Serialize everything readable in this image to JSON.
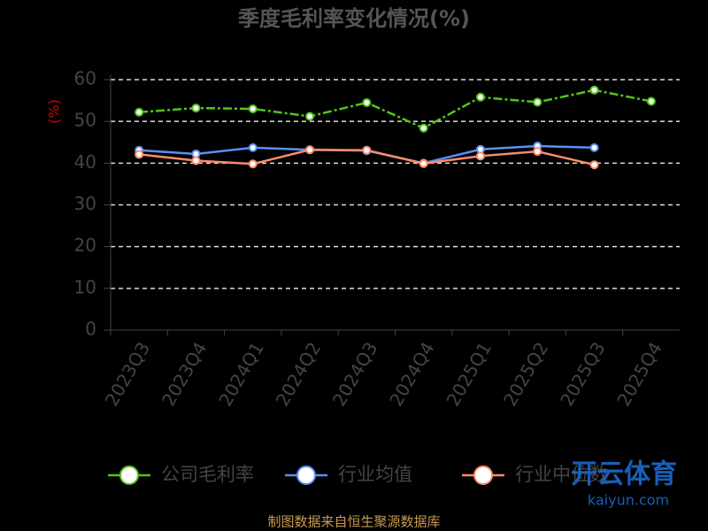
{
  "chart_data": {
    "type": "line",
    "title": "季度毛利率变化情况(%)",
    "y_label": "(%)",
    "categories": [
      "2023Q3",
      "2023Q4",
      "2024Q1",
      "2024Q2",
      "2024Q3",
      "2024Q4",
      "2025Q1",
      "2025Q2",
      "2025Q3",
      "2025Q4"
    ],
    "series": [
      {
        "name": "公司毛利率",
        "color": "#52c41a",
        "values": [
          52.2,
          53.2,
          53.0,
          51.2,
          54.5,
          48.4,
          55.8,
          54.6,
          57.5,
          54.8
        ]
      },
      {
        "name": "行业均值",
        "color": "#5b8ff9",
        "values": [
          43.1,
          42.2,
          43.7,
          43.2,
          43.0,
          40.0,
          43.3,
          44.1,
          43.7,
          null
        ]
      },
      {
        "name": "行业中位数",
        "color": "#ff8c69",
        "values": [
          42.1,
          40.6,
          39.8,
          43.2,
          43.1,
          39.9,
          41.7,
          42.8,
          39.6,
          null
        ]
      }
    ],
    "ylim": [
      0,
      60
    ],
    "yticks": [
      0,
      10,
      20,
      30,
      40,
      50,
      60
    ],
    "grid": true,
    "source": "制图数据来自恒生聚源数据库",
    "watermark": {
      "brand": "开云体育",
      "site": "kaiyun.com"
    }
  }
}
